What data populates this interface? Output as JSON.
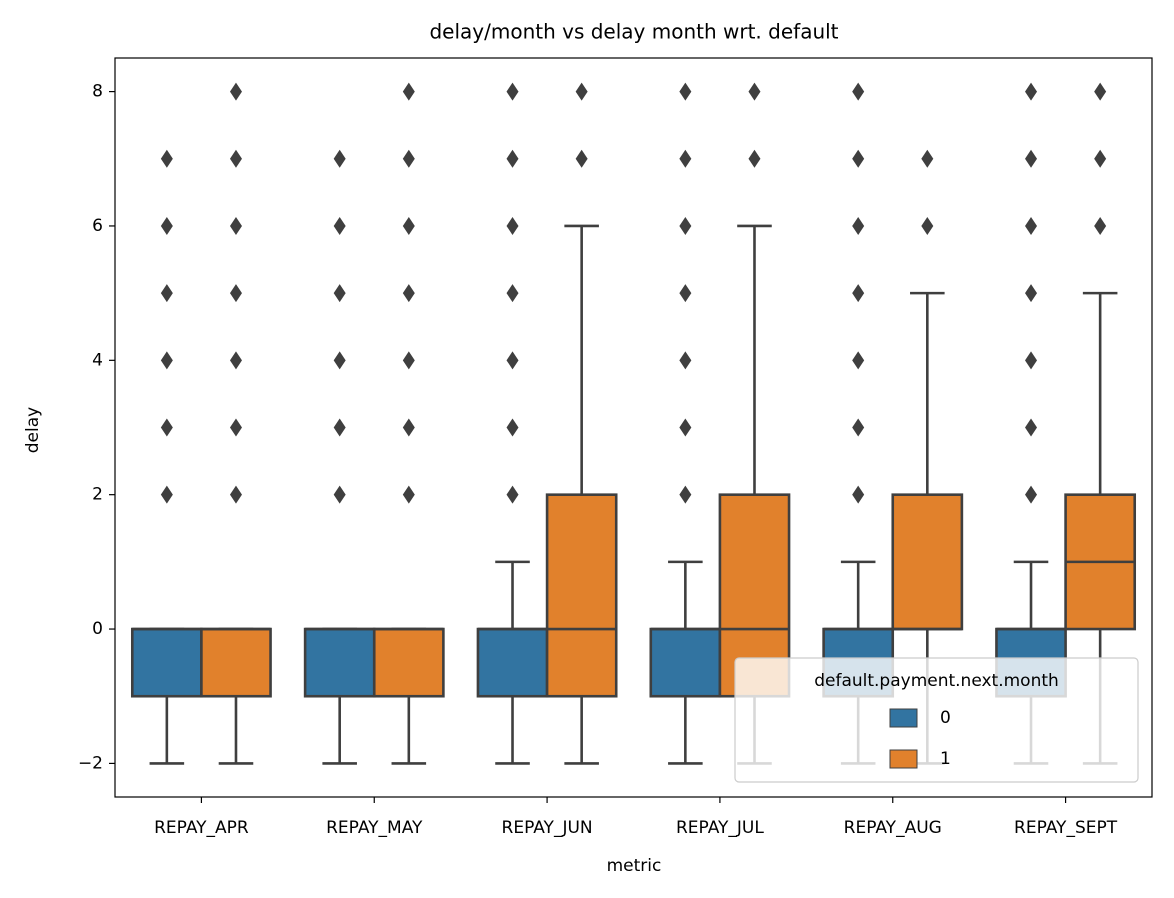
{
  "chart_data": {
    "type": "boxplot",
    "title": "delay/month vs delay month wrt. default",
    "x_label": "metric",
    "y_label": "delay",
    "categories": [
      "REPAY_APR",
      "REPAY_MAY",
      "REPAY_JUN",
      "REPAY_JUL",
      "REPAY_AUG",
      "REPAY_SEPT"
    ],
    "ylim": [
      -2.5,
      8.5
    ],
    "yticks": [
      {
        "value": -2,
        "label": "−2"
      },
      0,
      2,
      4,
      6,
      8
    ],
    "legend_title": "default.payment.next.month",
    "legend_position": "lower right",
    "series": [
      {
        "name": "0",
        "color": "#3274a1",
        "boxes": [
          {
            "whislo": -2,
            "q1": -1,
            "med": 0,
            "q3": 0,
            "whishi": 0,
            "fliers": [
              2,
              3,
              4,
              5,
              6,
              7
            ]
          },
          {
            "whislo": -2,
            "q1": -1,
            "med": 0,
            "q3": 0,
            "whishi": 0,
            "fliers": [
              2,
              3,
              4,
              5,
              6,
              7
            ]
          },
          {
            "whislo": -2,
            "q1": -1,
            "med": 0,
            "q3": 0,
            "whishi": 1,
            "fliers": [
              2,
              3,
              4,
              5,
              6,
              7,
              8
            ]
          },
          {
            "whislo": -2,
            "q1": -1,
            "med": 0,
            "q3": 0,
            "whishi": 1,
            "fliers": [
              2,
              3,
              4,
              5,
              6,
              7,
              8
            ]
          },
          {
            "whislo": -2,
            "q1": -1,
            "med": 0,
            "q3": 0,
            "whishi": 1,
            "fliers": [
              2,
              3,
              4,
              5,
              6,
              7,
              8
            ]
          },
          {
            "whislo": -2,
            "q1": -1,
            "med": 0,
            "q3": 0,
            "whishi": 1,
            "fliers": [
              2,
              3,
              4,
              5,
              6,
              7,
              8
            ]
          }
        ]
      },
      {
        "name": "1",
        "color": "#e1812c",
        "boxes": [
          {
            "whislo": -2,
            "q1": -1,
            "med": 0,
            "q3": 0,
            "whishi": 0,
            "fliers": [
              2,
              3,
              4,
              5,
              6,
              7,
              8
            ]
          },
          {
            "whislo": -2,
            "q1": -1,
            "med": 0,
            "q3": 0,
            "whishi": 0,
            "fliers": [
              2,
              3,
              4,
              5,
              6,
              7,
              8
            ]
          },
          {
            "whislo": -2,
            "q1": -1,
            "med": 0,
            "q3": 2,
            "whishi": 6,
            "fliers": [
              7,
              8
            ]
          },
          {
            "whislo": -2,
            "q1": -1,
            "med": 0,
            "q3": 2,
            "whishi": 6,
            "fliers": [
              7,
              8
            ]
          },
          {
            "whislo": -2,
            "q1": 0,
            "med": 0,
            "q3": 2,
            "whishi": 5,
            "fliers": [
              6,
              7
            ]
          },
          {
            "whislo": -2,
            "q1": 0,
            "med": 1,
            "q3": 2,
            "whishi": 5,
            "fliers": [
              6,
              7,
              8
            ]
          }
        ]
      }
    ]
  }
}
